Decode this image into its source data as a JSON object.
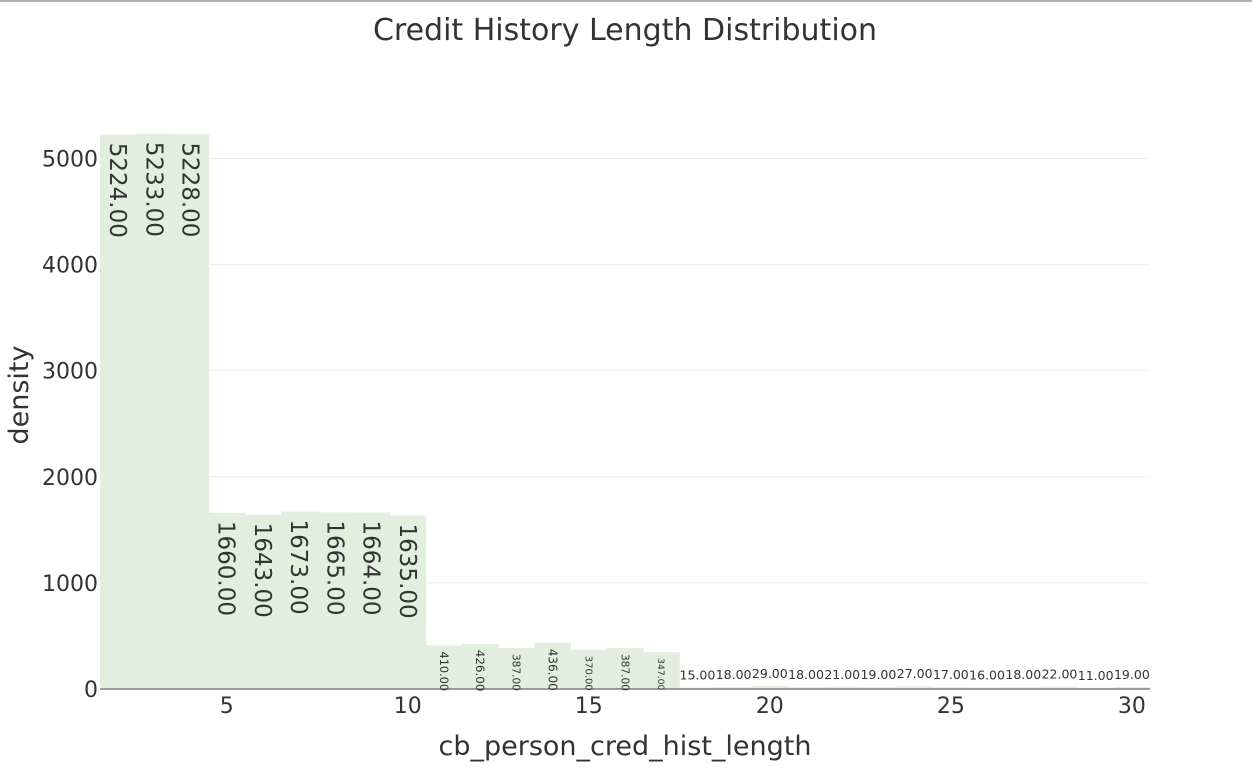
{
  "chart_data": {
    "type": "bar",
    "title": "Credit History Length Distribution",
    "xlabel": "cb_person_cred_hist_length",
    "ylabel": "density",
    "x": [
      2,
      3,
      4,
      5,
      6,
      7,
      8,
      9,
      10,
      11,
      12,
      13,
      14,
      15,
      16,
      17,
      18,
      19,
      20,
      21,
      22,
      23,
      24,
      25,
      26,
      27,
      28,
      29,
      30
    ],
    "values": [
      5224,
      5233,
      5228,
      1660,
      1643,
      1673,
      1665,
      1664,
      1635,
      410,
      426,
      387,
      436,
      370,
      387,
      347,
      15,
      18,
      29,
      18,
      21,
      19,
      27,
      17,
      16,
      18,
      22,
      11,
      19
    ],
    "labels": [
      "5224.00",
      "5233.00",
      "5228.00",
      "1660.00",
      "1643.00",
      "1673.00",
      "1665.00",
      "1664.00",
      "1635.00",
      "410.00",
      "426.00",
      "387.00",
      "436.00",
      "370.00",
      "387.00",
      "347.00",
      "15.00",
      "18.00",
      "29.00",
      "18.00",
      "21.00",
      "19.00",
      "27.00",
      "17.00",
      "16.00",
      "18.00",
      "22.00",
      "11.00",
      "19.00"
    ],
    "xlim": [
      1.5,
      30.5
    ],
    "ylim": [
      0,
      5250
    ],
    "x_ticks": [
      5,
      10,
      15,
      20,
      25,
      30
    ],
    "y_ticks": [
      0,
      1000,
      2000,
      3000,
      4000,
      5000
    ],
    "bar_color": "#e2efdf",
    "grid": true,
    "legend": "none"
  }
}
